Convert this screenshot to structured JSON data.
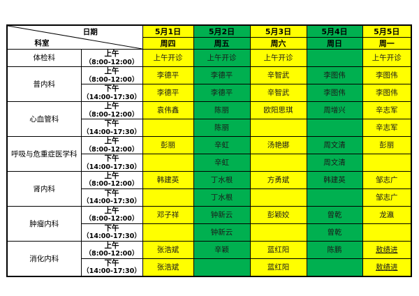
{
  "table": {
    "corner": {
      "date_label": "日期",
      "dept_label": "科室"
    },
    "colors": {
      "yellow": "#FFFF00",
      "green": "#00B050",
      "border": "#000000"
    },
    "columns": [
      {
        "date": "5月1日",
        "weekday": "周四",
        "color": "#FFFF00"
      },
      {
        "date": "5月2日",
        "weekday": "周五",
        "color": "#00B050"
      },
      {
        "date": "5月3日",
        "weekday": "周六",
        "color": "#FFFF00"
      },
      {
        "date": "5月4日",
        "weekday": "周日",
        "color": "#00B050"
      },
      {
        "date": "5月5日",
        "weekday": "周一",
        "color": "#FFFF00"
      }
    ],
    "time_slots": {
      "morning": {
        "label": "上午",
        "hours": "（8:00-12:00）"
      },
      "afternoon": {
        "label": "下午",
        "hours": "（14:00-17:30）"
      }
    },
    "departments": [
      {
        "name": "体检科",
        "rows": [
          {
            "slot": "morning",
            "cells": [
              "上午开诊",
              "上午开诊",
              "上午开诊",
              "",
              "上午开诊"
            ]
          }
        ]
      },
      {
        "name": "普内科",
        "rows": [
          {
            "slot": "morning",
            "cells": [
              "李德平",
              "李德平",
              "辛智武",
              "李图伟",
              "李图伟"
            ]
          },
          {
            "slot": "afternoon",
            "cells": [
              "李德平",
              "李德平",
              "辛智武",
              "李图伟",
              "李图伟"
            ]
          }
        ]
      },
      {
        "name": "心血管科",
        "rows": [
          {
            "slot": "morning",
            "cells": [
              "袁伟鑫",
              "陈丽",
              "欧阳思琪",
              "周增兴",
              "辛志军"
            ]
          },
          {
            "slot": "afternoon",
            "cells": [
              "",
              "陈丽",
              "",
              "",
              "辛志军"
            ]
          }
        ]
      },
      {
        "name": "呼吸与危重症医学科",
        "rows": [
          {
            "slot": "morning",
            "cells": [
              "彭丽",
              "辛虹",
              "汤艳娜",
              "周文清",
              "彭丽"
            ]
          },
          {
            "slot": "afternoon",
            "cells": [
              "",
              "辛虹",
              "",
              "周文清",
              ""
            ]
          }
        ]
      },
      {
        "name": "肾内科",
        "rows": [
          {
            "slot": "morning",
            "cells": [
              "韩建英",
              "丁水根",
              "方勇斌",
              "韩建英",
              "邹志广"
            ]
          },
          {
            "slot": "afternoon",
            "cells": [
              "",
              "丁水根",
              "",
              "",
              "邹志广"
            ]
          }
        ]
      },
      {
        "name": "肿瘤内科",
        "rows": [
          {
            "slot": "morning",
            "cells": [
              "邓子祥",
              "钟新云",
              "彭颖姣",
              "曾乾",
              "龙瀛"
            ]
          },
          {
            "slot": "afternoon",
            "cells": [
              "",
              "钟新云",
              "",
              "曾乾",
              ""
            ]
          }
        ]
      },
      {
        "name": "消化内科",
        "rows": [
          {
            "slot": "morning",
            "cells": [
              "张浩斌",
              "辛颖",
              "蓝红阳",
              "陈鹏",
              {
                "t": "敖绩进",
                "u": true
              }
            ]
          },
          {
            "slot": "afternoon",
            "cells": [
              "张浩斌",
              "",
              "蓝红阳",
              "",
              {
                "t": "敖绩进",
                "u": true
              }
            ]
          }
        ]
      }
    ]
  }
}
